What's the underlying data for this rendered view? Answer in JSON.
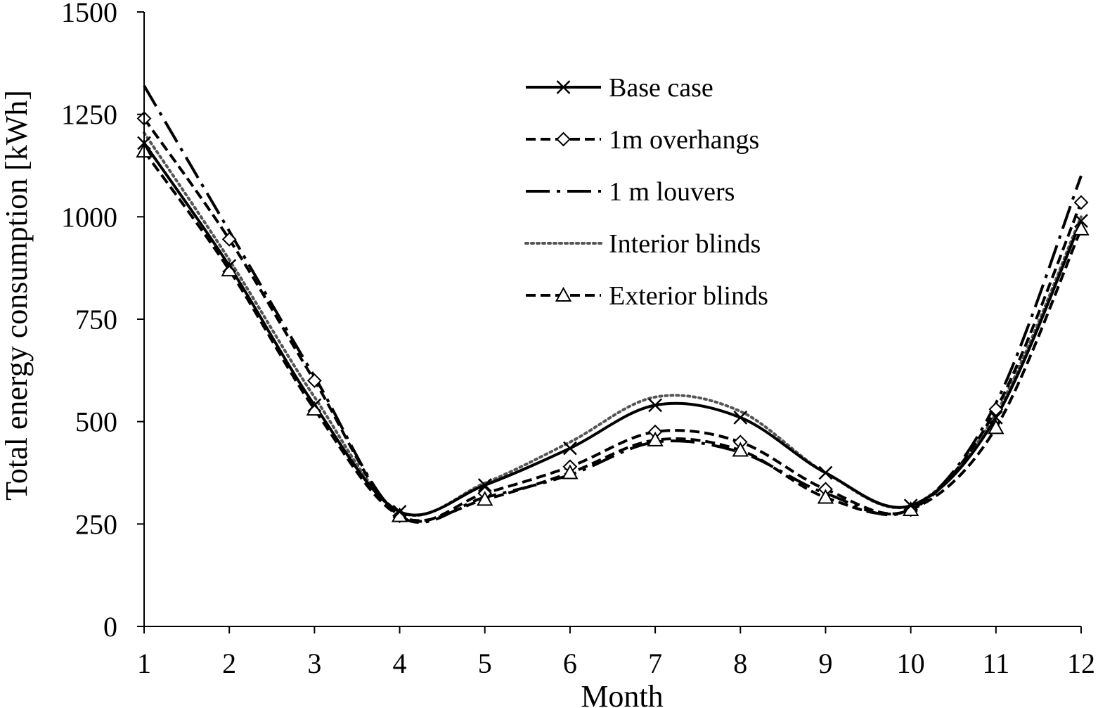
{
  "chart_data": {
    "type": "line",
    "smooth": true,
    "xlabel": "Month",
    "ylabel": "Total energy consumption [kWh]",
    "xlim": [
      1,
      12
    ],
    "ylim": [
      0,
      1500
    ],
    "x": [
      1,
      2,
      3,
      4,
      5,
      6,
      7,
      8,
      9,
      10,
      11,
      12
    ],
    "x_ticks": [
      "1",
      "2",
      "3",
      "4",
      "5",
      "6",
      "7",
      "8",
      "9",
      "10",
      "11",
      "12"
    ],
    "y_ticks": [
      "0",
      "250",
      "500",
      "750",
      "1000",
      "1250",
      "1500"
    ],
    "grid": false,
    "legend_position": "upper-center",
    "series": [
      {
        "name": "Base case",
        "marker": "x",
        "dash": "solid",
        "values": [
          1180,
          880,
          540,
          280,
          345,
          435,
          540,
          510,
          375,
          295,
          510,
          990
        ]
      },
      {
        "name": "1m overhangs",
        "marker": "diamond",
        "dash": "dashed",
        "values": [
          1240,
          945,
          600,
          270,
          325,
          390,
          475,
          450,
          335,
          285,
          530,
          1035
        ]
      },
      {
        "name": "1 m louvers",
        "marker": "none",
        "dash": "dashdot",
        "values": [
          1320,
          965,
          610,
          270,
          315,
          370,
          450,
          425,
          325,
          285,
          545,
          1100
        ]
      },
      {
        "name": "Interior blinds",
        "marker": "none",
        "dash": "dotted",
        "values": [
          1205,
          895,
          560,
          280,
          350,
          450,
          560,
          525,
          375,
          295,
          520,
          1000
        ]
      },
      {
        "name": "Exterior blinds",
        "marker": "triangle",
        "dash": "dashed",
        "values": [
          1160,
          870,
          530,
          270,
          310,
          375,
          455,
          430,
          315,
          285,
          485,
          970
        ]
      }
    ]
  }
}
